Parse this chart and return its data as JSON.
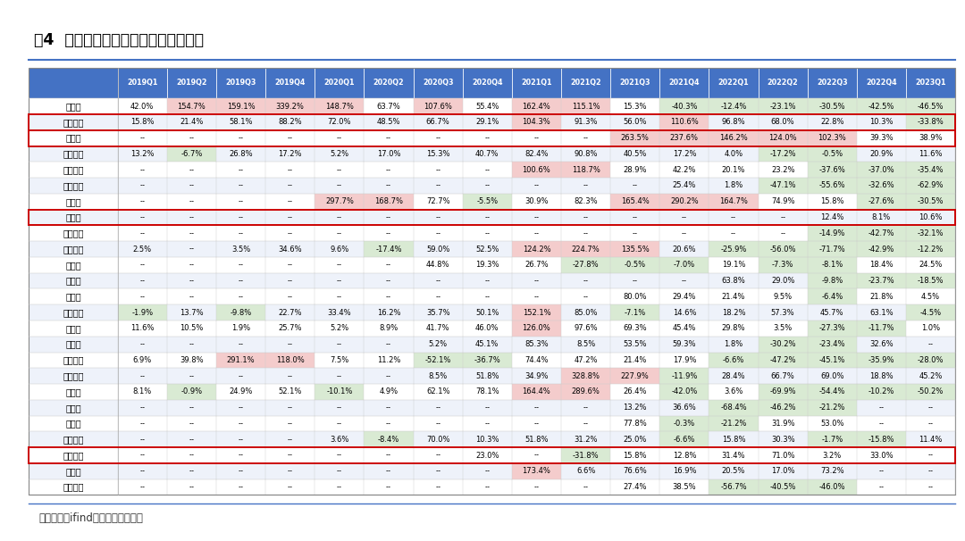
{
  "title": "图4  国内模拟芯片公司单季度收入同比",
  "footer": "资料来源：ifind，中航证券研究所",
  "columns": [
    "",
    "2019Q1",
    "2019Q2",
    "2019Q3",
    "2019Q4",
    "2020Q1",
    "2020Q2",
    "2020Q3",
    "2020Q4",
    "2021Q1",
    "2021Q2",
    "2021Q3",
    "2021Q4",
    "2022Q1",
    "2022Q2",
    "2022Q3",
    "2022Q4",
    "2023Q1"
  ],
  "rows": [
    {
      "name": "卓胜微",
      "values": [
        "42.0%",
        "154.7%",
        "159.1%",
        "339.2%",
        "148.7%",
        "63.7%",
        "107.6%",
        "55.4%",
        "162.4%",
        "115.1%",
        "15.3%",
        "-40.3%",
        "-12.4%",
        "-23.1%",
        "-30.5%",
        "-42.5%",
        "-46.5%"
      ],
      "border": false
    },
    {
      "name": "圣邦股份",
      "values": [
        "15.8%",
        "21.4%",
        "58.1%",
        "88.2%",
        "72.0%",
        "48.5%",
        "66.7%",
        "29.1%",
        "104.3%",
        "91.3%",
        "56.0%",
        "110.6%",
        "96.8%",
        "68.0%",
        "22.8%",
        "10.3%",
        "-33.8%"
      ],
      "border": true
    },
    {
      "name": "纳芯微",
      "values": [
        "--",
        "--",
        "--",
        "--",
        "--",
        "--",
        "--",
        "--",
        "--",
        "--",
        "263.5%",
        "237.6%",
        "146.2%",
        "124.0%",
        "102.3%",
        "39.3%",
        "38.9%"
      ],
      "border": true
    },
    {
      "name": "上海贝岭",
      "values": [
        "13.2%",
        "-6.7%",
        "26.8%",
        "17.2%",
        "5.2%",
        "17.0%",
        "15.3%",
        "40.7%",
        "82.4%",
        "90.8%",
        "40.5%",
        "17.2%",
        "4.0%",
        "-17.2%",
        "-0.5%",
        "20.9%",
        "11.6%"
      ],
      "border": false
    },
    {
      "name": "艾为电子",
      "values": [
        "--",
        "--",
        "--",
        "--",
        "--",
        "--",
        "--",
        "--",
        "100.6%",
        "118.7%",
        "28.9%",
        "42.2%",
        "20.1%",
        "23.2%",
        "-37.6%",
        "-37.0%",
        "-35.4%"
      ],
      "border": false
    },
    {
      "name": "唯捷创芯",
      "values": [
        "--",
        "--",
        "--",
        "--",
        "--",
        "--",
        "--",
        "--",
        "--",
        "--",
        "--",
        "25.4%",
        "1.8%",
        "-47.1%",
        "-55.6%",
        "-32.6%",
        "-62.9%"
      ],
      "border": false
    },
    {
      "name": "思瑞浦",
      "values": [
        "--",
        "--",
        "--",
        "--",
        "297.7%",
        "168.7%",
        "72.7%",
        "-5.5%",
        "30.9%",
        "82.3%",
        "165.4%",
        "290.2%",
        "164.7%",
        "74.9%",
        "15.8%",
        "-27.6%",
        "-30.5%"
      ],
      "border": false
    },
    {
      "name": "杰华特",
      "values": [
        "--",
        "--",
        "--",
        "--",
        "--",
        "--",
        "--",
        "--",
        "--",
        "--",
        "--",
        "--",
        "--",
        "--",
        "12.4%",
        "8.1%",
        "10.6%"
      ],
      "border": true
    },
    {
      "name": "南芯科技",
      "values": [
        "--",
        "--",
        "--",
        "--",
        "--",
        "--",
        "--",
        "--",
        "--",
        "--",
        "--",
        "--",
        "--",
        "--",
        "-14.9%",
        "-42.7%",
        "-32.1%"
      ],
      "border": false
    },
    {
      "name": "晶丰明源",
      "values": [
        "2.5%",
        "--",
        "3.5%",
        "34.6%",
        "9.6%",
        "-17.4%",
        "59.0%",
        "52.5%",
        "124.2%",
        "224.7%",
        "135.5%",
        "20.6%",
        "-25.9%",
        "-56.0%",
        "-71.7%",
        "-42.9%",
        "-12.2%"
      ],
      "border": false
    },
    {
      "name": "优利德",
      "values": [
        "--",
        "--",
        "--",
        "--",
        "--",
        "--",
        "44.8%",
        "19.3%",
        "26.7%",
        "-27.8%",
        "-0.5%",
        "-7.0%",
        "19.1%",
        "-7.3%",
        "-8.1%",
        "18.4%",
        "24.5%"
      ],
      "border": false
    },
    {
      "name": "天德钰",
      "values": [
        "--",
        "--",
        "--",
        "--",
        "--",
        "--",
        "--",
        "--",
        "--",
        "--",
        "--",
        "--",
        "63.8%",
        "29.0%",
        "-9.8%",
        "-23.7%",
        "-18.5%"
      ],
      "border": false
    },
    {
      "name": "英集芯",
      "values": [
        "--",
        "--",
        "--",
        "--",
        "--",
        "--",
        "--",
        "--",
        "--",
        "--",
        "80.0%",
        "29.4%",
        "21.4%",
        "9.5%",
        "-6.4%",
        "21.8%",
        "4.5%"
      ],
      "border": false
    },
    {
      "name": "振芯科技",
      "values": [
        "-1.9%",
        "13.7%",
        "-9.8%",
        "22.7%",
        "33.4%",
        "16.2%",
        "35.7%",
        "50.1%",
        "152.1%",
        "85.0%",
        "-7.1%",
        "14.6%",
        "18.2%",
        "57.3%",
        "45.7%",
        "63.1%",
        "-4.5%"
      ],
      "border": false
    },
    {
      "name": "芯朋微",
      "values": [
        "11.6%",
        "10.5%",
        "1.9%",
        "25.7%",
        "5.2%",
        "8.9%",
        "41.7%",
        "46.0%",
        "126.0%",
        "97.6%",
        "69.3%",
        "45.4%",
        "29.8%",
        "3.5%",
        "-27.3%",
        "-11.7%",
        "1.0%"
      ],
      "border": false
    },
    {
      "name": "力芯微",
      "values": [
        "--",
        "--",
        "--",
        "--",
        "--",
        "--",
        "5.2%",
        "45.1%",
        "85.3%",
        "8.5%",
        "53.5%",
        "59.3%",
        "1.8%",
        "-30.2%",
        "-23.4%",
        "32.6%",
        "--"
      ],
      "border": false
    },
    {
      "name": "博通集成",
      "values": [
        "6.9%",
        "39.8%",
        "291.1%",
        "118.0%",
        "7.5%",
        "11.2%",
        "-52.1%",
        "-36.7%",
        "74.4%",
        "47.2%",
        "21.4%",
        "17.9%",
        "-6.6%",
        "-47.2%",
        "-45.1%",
        "-35.9%",
        "-28.0%"
      ],
      "border": false
    },
    {
      "name": "明微电子",
      "values": [
        "--",
        "--",
        "--",
        "--",
        "--",
        "--",
        "8.5%",
        "51.8%",
        "34.9%",
        "328.8%",
        "227.9%",
        "-11.9%",
        "28.4%",
        "66.7%",
        "69.0%",
        "18.8%",
        "45.2%"
      ],
      "border": false
    },
    {
      "name": "富满微",
      "values": [
        "8.1%",
        "-0.9%",
        "24.9%",
        "52.1%",
        "-10.1%",
        "4.9%",
        "62.1%",
        "78.1%",
        "164.4%",
        "289.6%",
        "26.4%",
        "-42.0%",
        "3.6%",
        "-69.9%",
        "-54.4%",
        "-10.2%",
        "-50.2%"
      ],
      "border": false
    },
    {
      "name": "必易微",
      "values": [
        "--",
        "--",
        "--",
        "--",
        "--",
        "--",
        "--",
        "--",
        "--",
        "--",
        "13.2%",
        "36.6%",
        "-68.4%",
        "-46.2%",
        "-21.2%",
        "--",
        "--"
      ],
      "border": false
    },
    {
      "name": "帝奥微",
      "values": [
        "--",
        "--",
        "--",
        "--",
        "--",
        "--",
        "--",
        "--",
        "--",
        "--",
        "77.8%",
        "-0.3%",
        "-21.2%",
        "31.9%",
        "53.0%",
        "--",
        "--"
      ],
      "border": false
    },
    {
      "name": "敏芯股份",
      "values": [
        "--",
        "--",
        "--",
        "--",
        "3.6%",
        "-8.4%",
        "70.0%",
        "10.3%",
        "51.8%",
        "31.2%",
        "25.0%",
        "-6.6%",
        "15.8%",
        "30.3%",
        "-1.7%",
        "-15.8%",
        "11.4%"
      ],
      "border": false
    },
    {
      "name": "臻镭科技",
      "values": [
        "--",
        "--",
        "--",
        "--",
        "--",
        "--",
        "--",
        "23.0%",
        "--",
        "-31.8%",
        "15.8%",
        "12.8%",
        "31.4%",
        "71.0%",
        "3.2%",
        "33.0%",
        "--"
      ],
      "border": true
    },
    {
      "name": "希获微",
      "values": [
        "--",
        "--",
        "--",
        "--",
        "--",
        "--",
        "--",
        "--",
        "173.4%",
        "6.6%",
        "76.6%",
        "16.9%",
        "20.5%",
        "17.0%",
        "73.2%",
        "--",
        "--"
      ],
      "border": false
    },
    {
      "name": "赛微微电",
      "values": [
        "--",
        "--",
        "--",
        "--",
        "--",
        "--",
        "--",
        "--",
        "--",
        "--",
        "27.4%",
        "38.5%",
        "-56.7%",
        "-40.5%",
        "-46.0%",
        "--",
        "--"
      ],
      "border": false
    }
  ],
  "header_bg": "#4472C4",
  "header_fg": "#FFFFFF",
  "high_color": "#F4CCCC",
  "low_color": "#D9EAD3",
  "high_threshold": 100.0,
  "fig_width": 10.8,
  "fig_height": 6.06,
  "dpi": 100
}
